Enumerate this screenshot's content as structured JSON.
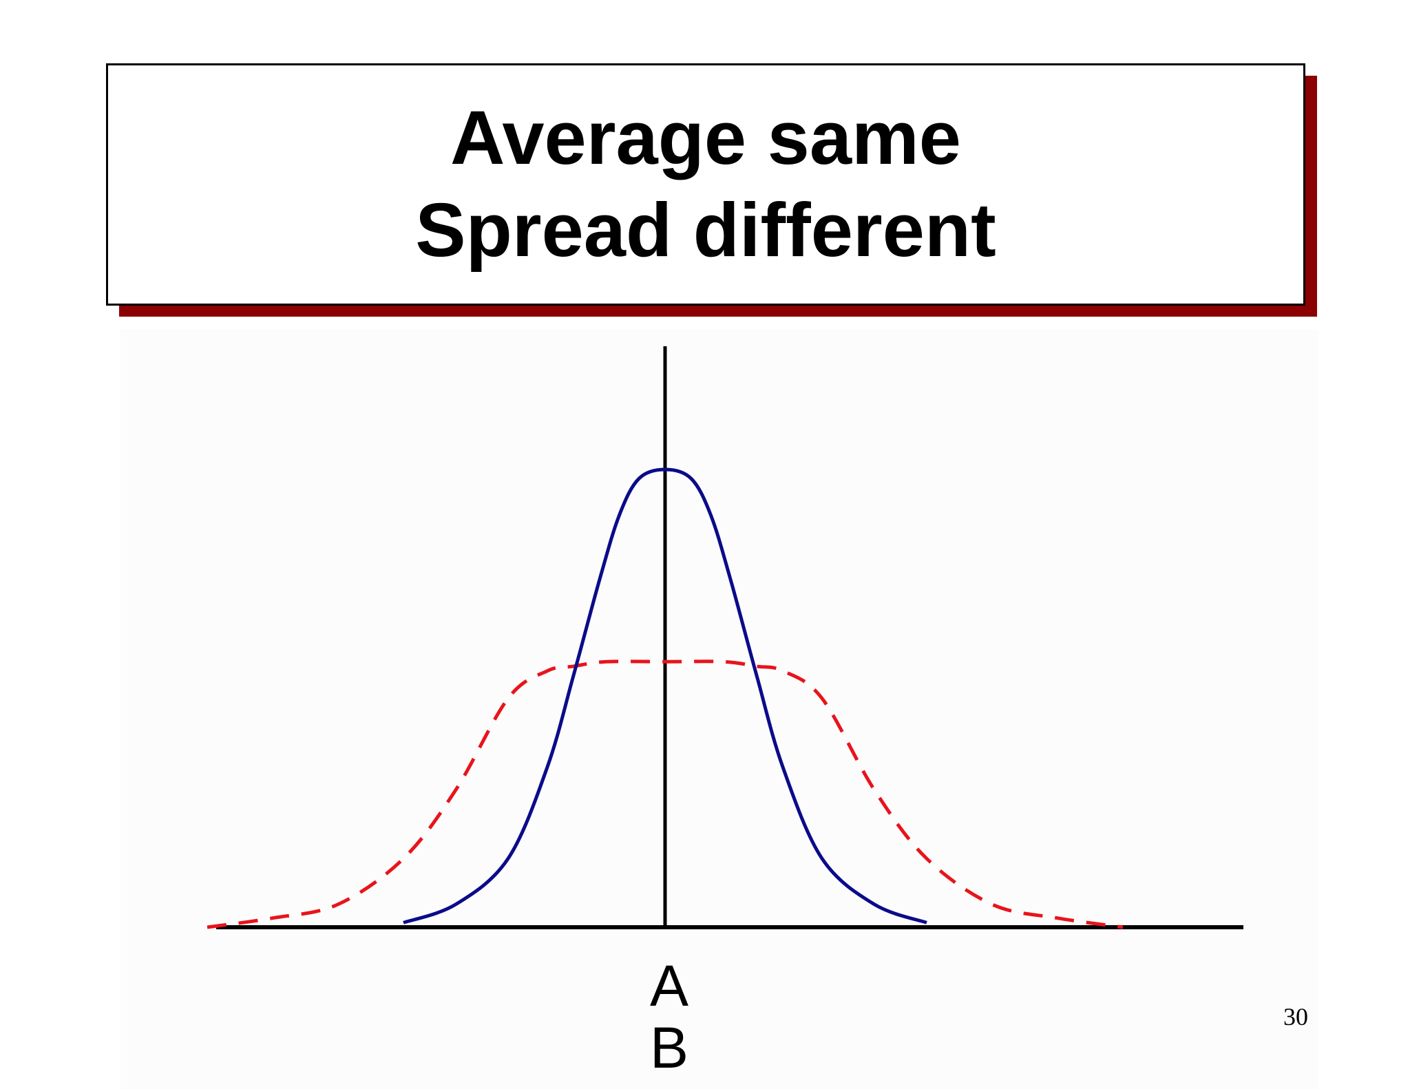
{
  "title": {
    "line1": "Average same",
    "line2": "Spread different"
  },
  "chart_data": {
    "type": "line",
    "title": "Average same / Spread different",
    "x_range": [
      -4,
      4
    ],
    "y_range": [
      0,
      1
    ],
    "mean": 0,
    "series": [
      {
        "name": "A",
        "description": "narrow distribution (solid)",
        "color": "#0b0b8a",
        "style": "solid",
        "x": [
          -2.0,
          -1.6,
          -1.2,
          -0.9,
          -0.7,
          -0.5,
          -0.35,
          -0.2,
          0,
          0.2,
          0.35,
          0.5,
          0.7,
          0.9,
          1.2,
          1.6,
          2.0
        ],
        "y": [
          0.01,
          0.05,
          0.15,
          0.35,
          0.55,
          0.76,
          0.9,
          0.98,
          1.0,
          0.98,
          0.9,
          0.76,
          0.55,
          0.35,
          0.15,
          0.05,
          0.01
        ]
      },
      {
        "name": "B",
        "description": "wide distribution (dashed)",
        "color": "#e8141b",
        "style": "dashed",
        "x": [
          -3.5,
          -3.0,
          -2.5,
          -2.0,
          -1.6,
          -1.2,
          -0.9,
          -0.7,
          -0.45,
          0,
          0.45,
          0.7,
          0.9,
          1.2,
          1.6,
          2.0,
          2.5,
          3.0,
          3.5
        ],
        "y": [
          0.0,
          0.02,
          0.05,
          0.15,
          0.3,
          0.5,
          0.56,
          0.57,
          0.58,
          0.58,
          0.58,
          0.57,
          0.56,
          0.5,
          0.3,
          0.15,
          0.05,
          0.02,
          0.0
        ]
      }
    ],
    "x_labels": [
      "A",
      "B"
    ]
  },
  "page_number": "30",
  "colors": {
    "title_shadow": "#8b0000",
    "axis": "#000000",
    "narrow_curve": "#0b0b8a",
    "wide_curve": "#e8141b"
  }
}
